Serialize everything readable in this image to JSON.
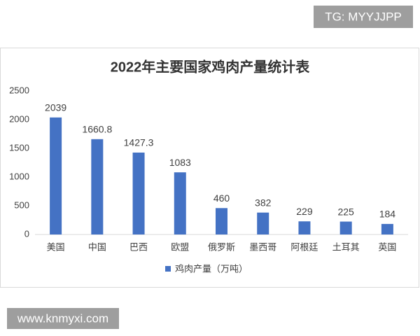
{
  "watermark_top": "TG: MYYJJPP",
  "watermark_bottom": "www.knmyxi.com",
  "chart_data": {
    "type": "bar",
    "title": "2022年主要国家鸡肉产量统计表",
    "categories": [
      "美国",
      "中国",
      "巴西",
      "欧盟",
      "俄罗斯",
      "墨西哥",
      "阿根廷",
      "土耳其",
      "英国"
    ],
    "series": [
      {
        "name": "鸡肉产量（万吨）",
        "color": "#4472c4",
        "values": [
          2039,
          1660.8,
          1427.3,
          1083,
          460,
          382,
          229,
          225,
          184
        ]
      }
    ],
    "ylim": [
      0,
      2500
    ],
    "yticks": [
      0,
      500,
      1000,
      1500,
      2000,
      2500
    ],
    "grid": false,
    "legend": "bottom"
  }
}
